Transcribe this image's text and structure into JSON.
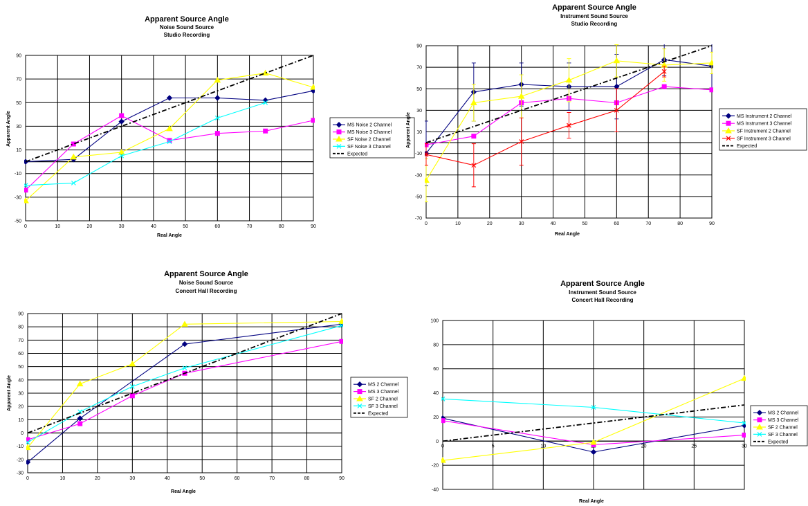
{
  "chart_data": [
    {
      "type": "line",
      "title": "Apparent Source Angle",
      "subtitle": [
        "Noise Sound Source",
        "Studio Recording"
      ],
      "xlabel": "Real Angle",
      "ylabel": "Apparent Angle",
      "xlim": [
        0,
        90
      ],
      "ylim": [
        -50,
        90
      ],
      "xticks": [
        0,
        10,
        20,
        30,
        40,
        50,
        60,
        70,
        80,
        90
      ],
      "yticks": [
        -50,
        -30,
        -10,
        10,
        30,
        50,
        70,
        90
      ],
      "grid": true,
      "legend_placement": "right",
      "series": [
        {
          "name": "MS Noise 2 Channel",
          "color": "#000080",
          "marker": "diamond",
          "x": [
            0,
            15,
            30,
            45,
            60,
            75,
            90
          ],
          "values": [
            0,
            2,
            34,
            54,
            54,
            52,
            60
          ]
        },
        {
          "name": "MS Noise 3 Channel",
          "color": "#ff00ff",
          "marker": "square",
          "x": [
            0,
            15,
            30,
            45,
            60,
            75,
            90
          ],
          "values": [
            -24,
            15,
            39,
            18,
            24,
            26,
            35
          ]
        },
        {
          "name": "SF Noise 2 Channel",
          "color": "#ffff00",
          "marker": "triangle",
          "x": [
            0,
            15,
            30,
            45,
            60,
            75,
            90
          ],
          "values": [
            -33,
            4,
            8,
            28,
            69,
            75,
            63
          ]
        },
        {
          "name": "SF Noise 3 Channel",
          "color": "#00ffff",
          "marker": "x",
          "x": [
            0,
            15,
            30,
            45,
            60,
            75,
            90
          ],
          "values": [
            -20,
            -18,
            5,
            17,
            37,
            50,
            null
          ]
        },
        {
          "name": "Expected",
          "color": "#000000",
          "dashed": true,
          "x": [
            0,
            90
          ],
          "values": [
            0,
            90
          ]
        }
      ]
    },
    {
      "type": "line",
      "title": "Apparent Source Angle",
      "subtitle": [
        "Instrument Sound Source",
        "Studio Recording"
      ],
      "xlabel": "Real Angle",
      "ylabel": "Apparent Angle",
      "xlim": [
        0,
        90
      ],
      "ylim": [
        -70,
        90
      ],
      "xticks": [
        0,
        10,
        20,
        30,
        40,
        50,
        60,
        70,
        80,
        90
      ],
      "yticks": [
        -70,
        -50,
        -30,
        -10,
        10,
        30,
        50,
        70,
        90
      ],
      "grid": true,
      "legend_placement": "right",
      "series": [
        {
          "name": "MS Instrument 2 Channel",
          "color": "#000080",
          "marker": "diamond",
          "x": [
            0,
            15,
            30,
            45,
            60,
            75,
            90
          ],
          "values": [
            -10,
            47,
            54,
            52,
            52,
            77,
            71
          ],
          "err": [
            30,
            27,
            20,
            22,
            30,
            15,
            22
          ]
        },
        {
          "name": "MS Instrument 3 Channel",
          "color": "#ff00ff",
          "marker": "square",
          "x": [
            0,
            15,
            30,
            45,
            60,
            75,
            90
          ],
          "values": [
            -2,
            6,
            37,
            41,
            37,
            52,
            49
          ]
        },
        {
          "name": "SF Instrument 2 Channel",
          "color": "#ffff00",
          "marker": "triangle",
          "x": [
            0,
            15,
            30,
            45,
            60,
            75,
            90
          ],
          "values": [
            -35,
            37,
            43,
            58,
            76,
            72,
            74
          ],
          "err": [
            20,
            17,
            20,
            20,
            15,
            15,
            10
          ]
        },
        {
          "name": "SF Instrument 3 Channel",
          "color": "#ff0000",
          "marker": "x",
          "x": [
            0,
            15,
            30,
            45,
            60,
            75,
            90
          ],
          "values": [
            -11,
            -21,
            1,
            16,
            30,
            66,
            null
          ],
          "err": [
            10,
            20,
            22,
            12,
            20,
            5,
            null
          ]
        },
        {
          "name": "Expected",
          "color": "#000000",
          "dashed": true,
          "x": [
            0,
            90
          ],
          "values": [
            0,
            90
          ]
        }
      ]
    },
    {
      "type": "line",
      "title": "Apparent Source Angle",
      "subtitle": [
        "Noise Sound Source",
        "Concert Hall Recording"
      ],
      "xlabel": "Real Angle",
      "ylabel": "Apparent Angle",
      "xlim": [
        0,
        90
      ],
      "ylim": [
        -30,
        90
      ],
      "xticks": [
        0,
        10,
        20,
        30,
        40,
        50,
        60,
        70,
        80,
        90
      ],
      "yticks": [
        -30,
        -20,
        -10,
        0,
        10,
        20,
        30,
        40,
        50,
        60,
        70,
        80,
        90
      ],
      "grid": true,
      "legend_placement": "right",
      "series": [
        {
          "name": "MS 2 Channel",
          "color": "#000080",
          "marker": "diamond",
          "x": [
            0,
            15,
            45,
            90
          ],
          "values": [
            -22,
            11,
            67,
            82
          ]
        },
        {
          "name": "MS 3 Channel",
          "color": "#ff00ff",
          "marker": "square",
          "x": [
            0,
            15,
            30,
            45,
            90
          ],
          "values": [
            -5,
            7,
            28,
            45,
            69
          ]
        },
        {
          "name": "SF 2 Channel",
          "color": "#ffff00",
          "marker": "triangle",
          "x": [
            0,
            15,
            30,
            45,
            90
          ],
          "values": [
            -11,
            37,
            52,
            82,
            84
          ]
        },
        {
          "name": "SF 3 Channel",
          "color": "#00ffff",
          "marker": "x",
          "x": [
            0,
            15,
            30,
            45,
            90
          ],
          "values": [
            -7,
            16,
            35,
            49,
            81
          ]
        },
        {
          "name": "Expected",
          "color": "#000000",
          "dashed": true,
          "x": [
            0,
            90
          ],
          "values": [
            0,
            90
          ]
        }
      ]
    },
    {
      "type": "line",
      "title": "Apparent Source Angle",
      "subtitle": [
        "Instrument Sound Source",
        "Concert Hall Recording"
      ],
      "xlabel": "Real Angle",
      "ylabel": "",
      "xlim": [
        0,
        30
      ],
      "ylim": [
        -40,
        100
      ],
      "xticks": [
        0,
        5,
        10,
        15,
        20,
        25,
        30
      ],
      "yticks": [
        -40,
        -20,
        0,
        20,
        40,
        60,
        80,
        100
      ],
      "grid": true,
      "legend_placement": "right",
      "series": [
        {
          "name": "MS 2 Channel",
          "color": "#000080",
          "marker": "diamond",
          "x": [
            0,
            15,
            30
          ],
          "values": [
            19,
            -9,
            13
          ]
        },
        {
          "name": "MS 3 Channel",
          "color": "#ff00ff",
          "marker": "square",
          "x": [
            0,
            15,
            30
          ],
          "values": [
            17,
            -3,
            5
          ]
        },
        {
          "name": "SF 2 Channel",
          "color": "#ffff00",
          "marker": "triangle",
          "x": [
            0,
            15,
            30
          ],
          "values": [
            -16,
            -1,
            52
          ]
        },
        {
          "name": "SF 3 Channel",
          "color": "#00ffff",
          "marker": "x",
          "x": [
            0,
            15,
            30
          ],
          "values": [
            35,
            28,
            15
          ]
        },
        {
          "name": "Expected",
          "color": "#000000",
          "dashed": true,
          "x": [
            0,
            30
          ],
          "values": [
            0,
            30
          ]
        }
      ]
    }
  ]
}
